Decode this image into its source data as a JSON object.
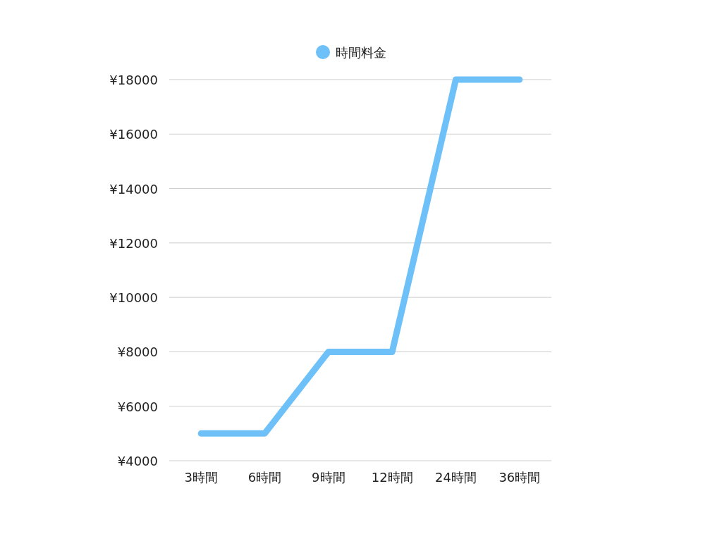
{
  "chart_data": {
    "type": "line",
    "categories": [
      "3時間",
      "6時間",
      "9時間",
      "12時間",
      "24時間",
      "36時間"
    ],
    "series": [
      {
        "name": "時間料金",
        "color": "#6ec0f8",
        "values": [
          5000,
          5000,
          8000,
          8000,
          18000,
          18000
        ]
      }
    ],
    "ylim": [
      4000,
      18000
    ],
    "yticks": [
      {
        "value": 4000,
        "label": "¥4000"
      },
      {
        "value": 6000,
        "label": "¥6000"
      },
      {
        "value": 8000,
        "label": "¥8000"
      },
      {
        "value": 10000,
        "label": "¥10000"
      },
      {
        "value": 12000,
        "label": "¥12000"
      },
      {
        "value": 14000,
        "label": "¥14000"
      },
      {
        "value": 16000,
        "label": "¥16000"
      },
      {
        "value": 18000,
        "label": "¥18000"
      }
    ],
    "grid": "y",
    "legend": "top"
  }
}
